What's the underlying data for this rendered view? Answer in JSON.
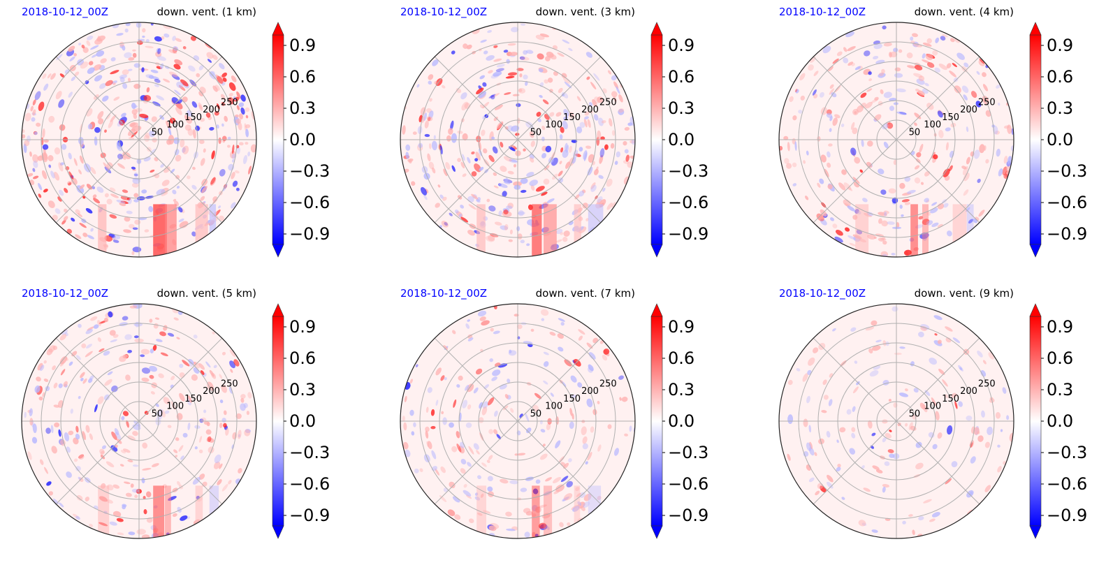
{
  "figure": {
    "colors": {
      "date_text": "#0000ff",
      "title_text": "#000000",
      "grid": "#b0b0b0",
      "positive": "#ff0000",
      "negative": "#0000ff",
      "neutral": "#ffffff"
    }
  },
  "chart_data": [
    {
      "type": "heatmap",
      "projection": "polar",
      "date_label": "2018-10-12_00Z",
      "title": "down. vent. (1 km)",
      "radial_ticks": [
        50,
        100,
        150,
        200,
        250
      ],
      "radial_range": [
        0,
        300
      ],
      "angular_gridlines_deg": [
        0,
        45,
        90,
        135,
        180,
        225,
        270,
        315
      ],
      "colorbar": {
        "ticks": [
          0.9,
          0.6,
          0.3,
          0.0,
          -0.3,
          -0.6,
          -0.9
        ],
        "tick_labels": [
          "0.9",
          "0.6",
          "0.3",
          "0.0",
          "−0.3",
          "−0.6",
          "−0.9"
        ],
        "range": [
          -1.0,
          1.0
        ],
        "colormap": "bwr",
        "extend": "both"
      },
      "intensity": "high"
    },
    {
      "type": "heatmap",
      "projection": "polar",
      "date_label": "2018-10-12_00Z",
      "title": "down. vent. (3 km)",
      "radial_ticks": [
        50,
        100,
        150,
        200,
        250
      ],
      "radial_range": [
        0,
        300
      ],
      "angular_gridlines_deg": [
        0,
        45,
        90,
        135,
        180,
        225,
        270,
        315
      ],
      "colorbar": {
        "ticks": [
          0.9,
          0.6,
          0.3,
          0.0,
          -0.3,
          -0.6,
          -0.9
        ],
        "tick_labels": [
          "0.9",
          "0.6",
          "0.3",
          "0.0",
          "−0.3",
          "−0.6",
          "−0.9"
        ],
        "range": [
          -1.0,
          1.0
        ],
        "colormap": "bwr",
        "extend": "both"
      },
      "intensity": "medium-high"
    },
    {
      "type": "heatmap",
      "projection": "polar",
      "date_label": "2018-10-12_00Z",
      "title": "down. vent. (4 km)",
      "radial_ticks": [
        50,
        100,
        150,
        200,
        250
      ],
      "radial_range": [
        0,
        300
      ],
      "angular_gridlines_deg": [
        0,
        45,
        90,
        135,
        180,
        225,
        270,
        315
      ],
      "colorbar": {
        "ticks": [
          0.9,
          0.6,
          0.3,
          0.0,
          -0.3,
          -0.6,
          -0.9
        ],
        "tick_labels": [
          "0.9",
          "0.6",
          "0.3",
          "0.0",
          "−0.3",
          "−0.6",
          "−0.9"
        ],
        "range": [
          -1.0,
          1.0
        ],
        "colormap": "bwr",
        "extend": "both"
      },
      "intensity": "medium"
    },
    {
      "type": "heatmap",
      "projection": "polar",
      "date_label": "2018-10-12_00Z",
      "title": "down. vent. (5 km)",
      "radial_ticks": [
        50,
        100,
        150,
        200,
        250
      ],
      "radial_range": [
        0,
        300
      ],
      "angular_gridlines_deg": [
        0,
        45,
        90,
        135,
        180,
        225,
        270,
        315
      ],
      "colorbar": {
        "ticks": [
          0.9,
          0.6,
          0.3,
          0.0,
          -0.3,
          -0.6,
          -0.9
        ],
        "tick_labels": [
          "0.9",
          "0.6",
          "0.3",
          "0.0",
          "−0.3",
          "−0.6",
          "−0.9"
        ],
        "range": [
          -1.0,
          1.0
        ],
        "colormap": "bwr",
        "extend": "both"
      },
      "intensity": "medium"
    },
    {
      "type": "heatmap",
      "projection": "polar",
      "date_label": "2018-10-12_00Z",
      "title": "down. vent. (7 km)",
      "radial_ticks": [
        50,
        100,
        150,
        200,
        250
      ],
      "radial_range": [
        0,
        300
      ],
      "angular_gridlines_deg": [
        0,
        45,
        90,
        135,
        180,
        225,
        270,
        315
      ],
      "colorbar": {
        "ticks": [
          0.9,
          0.6,
          0.3,
          0.0,
          -0.3,
          -0.6,
          -0.9
        ],
        "tick_labels": [
          "0.9",
          "0.6",
          "0.3",
          "0.0",
          "−0.3",
          "−0.6",
          "−0.9"
        ],
        "range": [
          -1.0,
          1.0
        ],
        "colormap": "bwr",
        "extend": "both"
      },
      "intensity": "low-medium"
    },
    {
      "type": "heatmap",
      "projection": "polar",
      "date_label": "2018-10-12_00Z",
      "title": "down. vent. (9 km)",
      "radial_ticks": [
        50,
        100,
        150,
        200,
        250
      ],
      "radial_range": [
        0,
        300
      ],
      "angular_gridlines_deg": [
        0,
        45,
        90,
        135,
        180,
        225,
        270,
        315
      ],
      "colorbar": {
        "ticks": [
          0.9,
          0.6,
          0.3,
          0.0,
          -0.3,
          -0.6,
          -0.9
        ],
        "tick_labels": [
          "0.9",
          "0.6",
          "0.3",
          "0.0",
          "−0.3",
          "−0.6",
          "−0.9"
        ],
        "range": [
          -1.0,
          1.0
        ],
        "colormap": "bwr",
        "extend": "both"
      },
      "intensity": "low"
    }
  ]
}
